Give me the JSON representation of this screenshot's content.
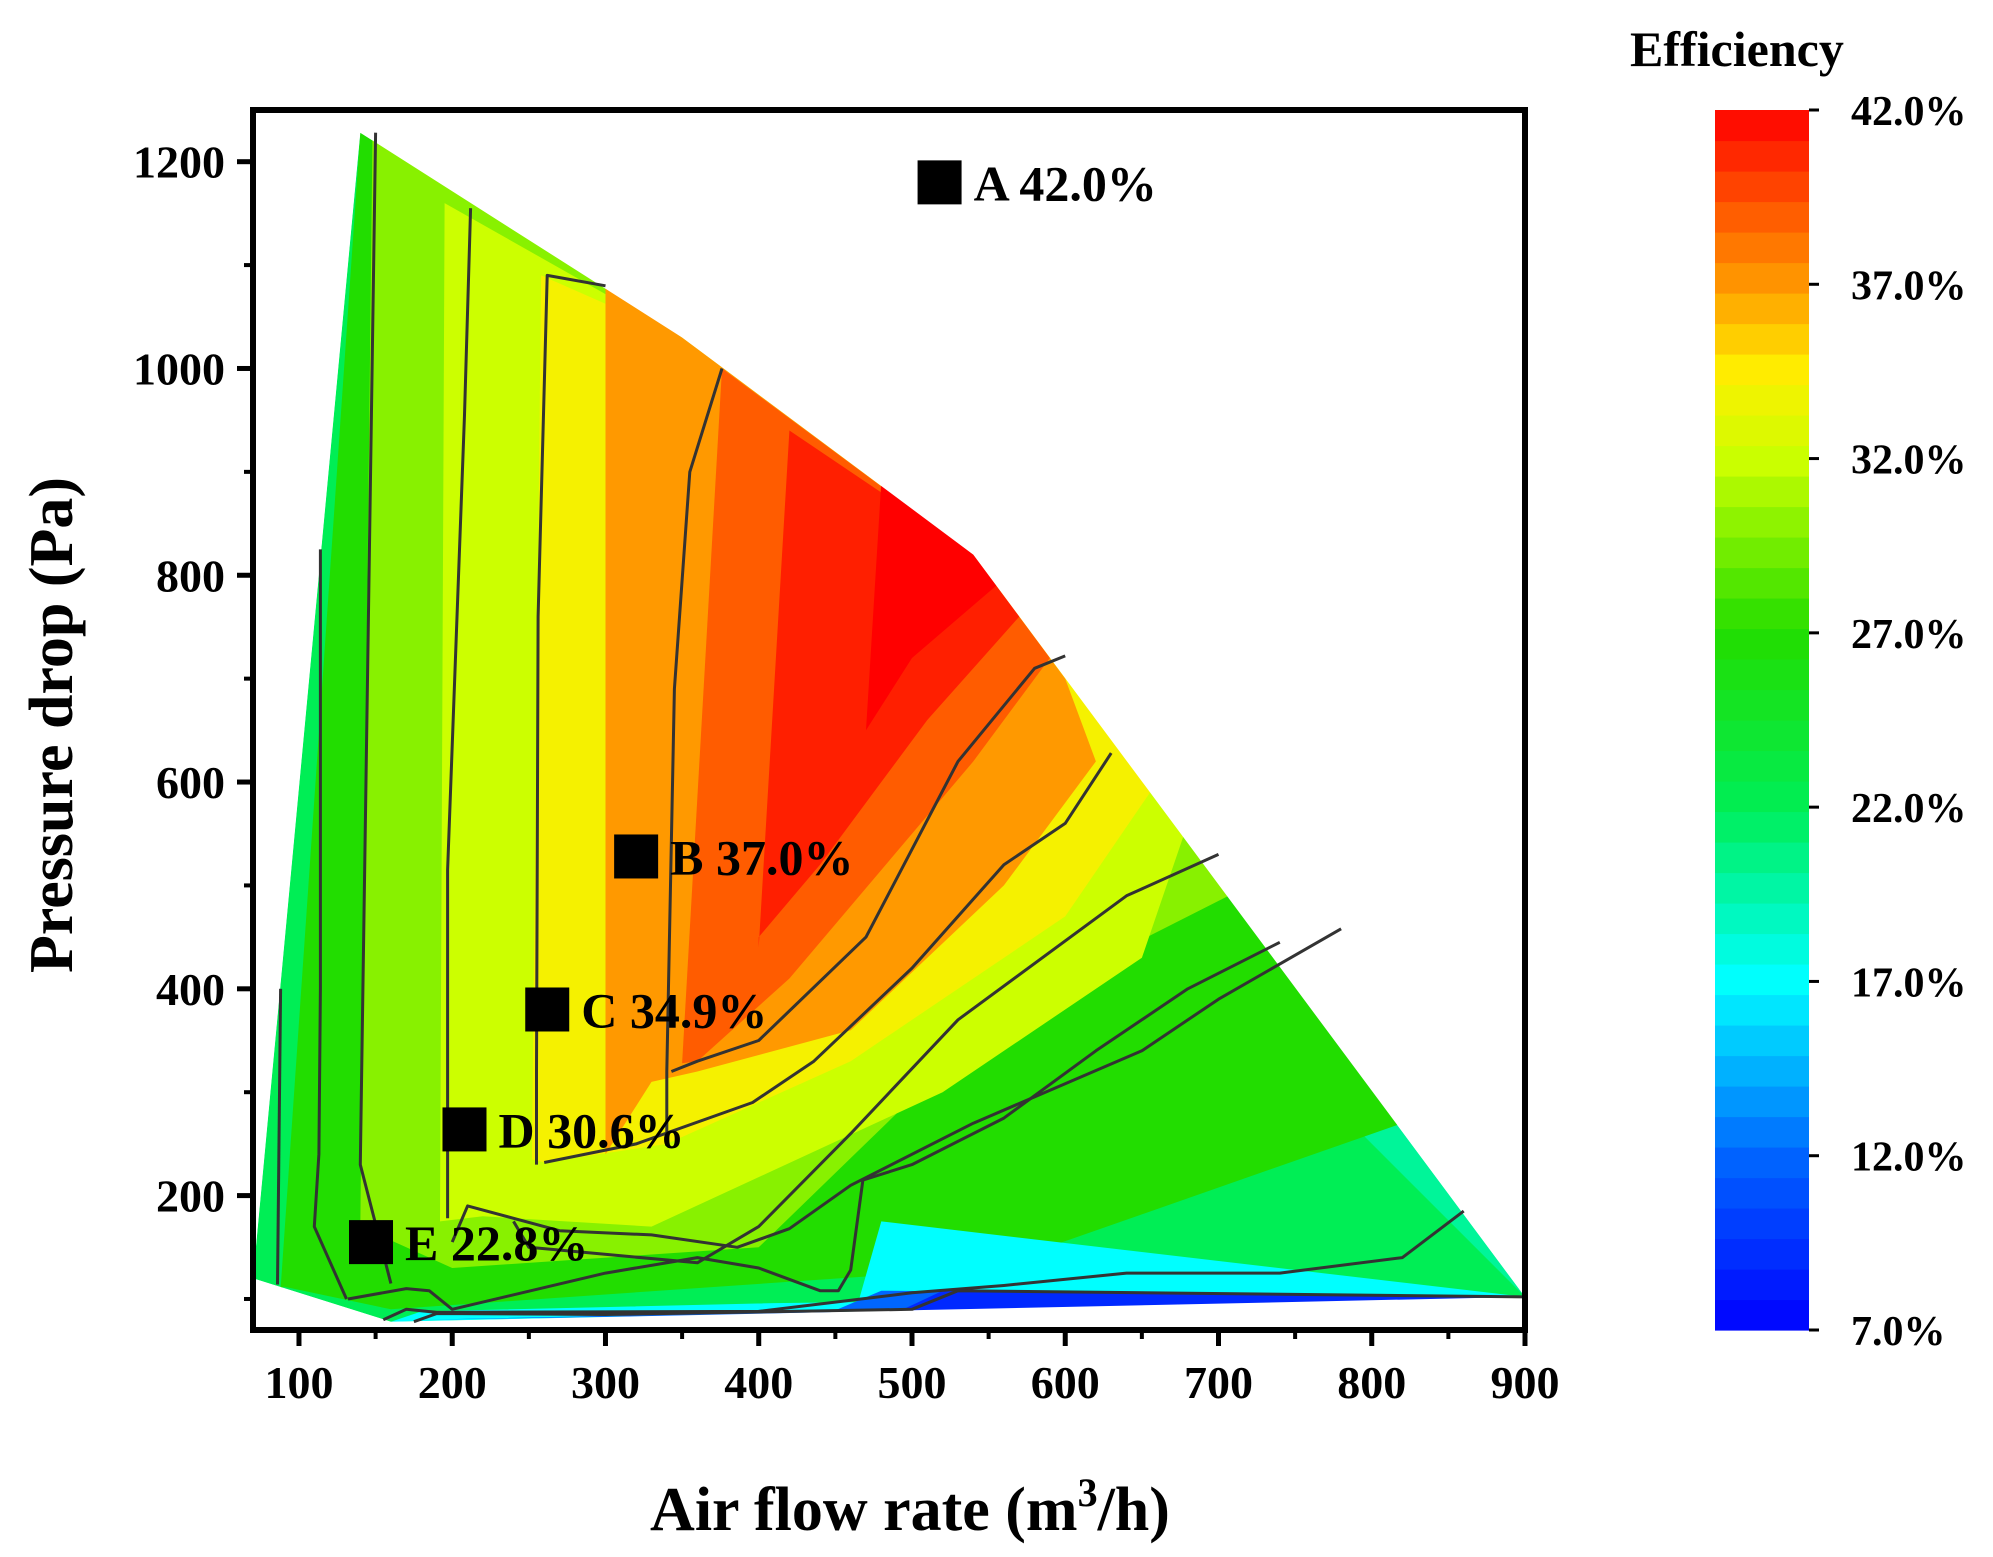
{
  "chart_data": {
    "type": "contour",
    "xlabel_main": "Air flow rate (m",
    "xlabel_sup": "3",
    "xlabel_end": "/h)",
    "ylabel": "Pressure drop (Pa)",
    "colorbar_title": "Efficiency",
    "xlim": [
      70,
      900
    ],
    "ylim": [
      70,
      1250
    ],
    "x_ticks": [
      100,
      200,
      300,
      400,
      500,
      600,
      700,
      800,
      900
    ],
    "x_tick_labels": [
      "100",
      "200",
      "300",
      "400",
      "500",
      "600",
      "700",
      "800",
      "900"
    ],
    "y_ticks": [
      200,
      400,
      600,
      800,
      1000,
      1200
    ],
    "y_tick_labels": [
      "200",
      "400",
      "600",
      "800",
      "1000",
      "1200"
    ],
    "colorbar_range": [
      7.0,
      42.0
    ],
    "colorbar_ticks": [
      42.0,
      37.0,
      32.0,
      27.0,
      22.0,
      17.0,
      12.0,
      7.0
    ],
    "colorbar_tick_labels": [
      "42.0%",
      "37.0%",
      "32.0%",
      "27.0%",
      "22.0%",
      "17.0%",
      "12.0%",
      "7.0%"
    ],
    "colors": {
      "stops": [
        {
          "v": 7.0,
          "c": "#0000ff"
        },
        {
          "v": 12.0,
          "c": "#0066ff"
        },
        {
          "v": 17.0,
          "c": "#00ffff"
        },
        {
          "v": 22.0,
          "c": "#00ee55"
        },
        {
          "v": 27.0,
          "c": "#22dd00"
        },
        {
          "v": 32.0,
          "c": "#ccff00"
        },
        {
          "v": 34.5,
          "c": "#ffee00"
        },
        {
          "v": 37.0,
          "c": "#ff9900"
        },
        {
          "v": 42.0,
          "c": "#ff0000"
        }
      ]
    },
    "domain_boundary": [
      [
        70,
        120
      ],
      [
        140,
        1228
      ],
      [
        350,
        1030
      ],
      [
        540,
        820
      ],
      [
        900,
        102
      ],
      [
        160,
        78
      ],
      [
        70,
        120
      ]
    ],
    "bands": [
      {
        "level": 22.0,
        "polygon": [
          [
            70,
            120
          ],
          [
            140,
            1228
          ],
          [
            900,
            102
          ],
          [
            160,
            78
          ],
          [
            70,
            120
          ]
        ]
      },
      {
        "level": 27.0,
        "polygon": [
          [
            88,
            110
          ],
          [
            140,
            1228
          ],
          [
            350,
            1030
          ],
          [
            540,
            820
          ],
          [
            695,
            530
          ],
          [
            745,
            445
          ],
          [
            780,
            355
          ],
          [
            820,
            270
          ],
          [
            550,
            130
          ],
          [
            160,
            90
          ],
          [
            90,
            112
          ]
        ]
      },
      {
        "level": 30.0,
        "polygon": [
          [
            140,
            170
          ],
          [
            148,
            1228
          ],
          [
            350,
            1030
          ],
          [
            540,
            820
          ],
          [
            630,
            628
          ],
          [
            700,
            530
          ],
          [
            720,
            500
          ],
          [
            560,
            380
          ],
          [
            400,
            150
          ],
          [
            200,
            130
          ],
          [
            140,
            170
          ]
        ]
      },
      {
        "level": 32.0,
        "polygon": [
          [
            192,
            175
          ],
          [
            195,
            1160
          ],
          [
            350,
            1030
          ],
          [
            540,
            820
          ],
          [
            630,
            628
          ],
          [
            680,
            560
          ],
          [
            650,
            430
          ],
          [
            520,
            300
          ],
          [
            330,
            170
          ],
          [
            220,
            180
          ]
        ]
      },
      {
        "level": 34.0,
        "polygon": [
          [
            252,
            235
          ],
          [
            258,
            1090
          ],
          [
            350,
            1030
          ],
          [
            540,
            820
          ],
          [
            660,
            600
          ],
          [
            600,
            470
          ],
          [
            460,
            330
          ],
          [
            340,
            250
          ],
          [
            260,
            232
          ]
        ]
      },
      {
        "level": 37.0,
        "polygon": [
          [
            300,
            240
          ],
          [
            300,
            1080
          ],
          [
            350,
            1030
          ],
          [
            540,
            820
          ],
          [
            600,
            700
          ],
          [
            620,
            620
          ],
          [
            560,
            500
          ],
          [
            460,
            360
          ],
          [
            360,
            320
          ],
          [
            330,
            310
          ]
        ]
      },
      {
        "level": 39.0,
        "polygon": [
          [
            350,
            328
          ],
          [
            376,
            1000
          ],
          [
            540,
            820
          ],
          [
            590,
            720
          ],
          [
            540,
            620
          ],
          [
            420,
            410
          ],
          [
            360,
            330
          ]
        ]
      },
      {
        "level": 41.0,
        "polygon": [
          [
            400,
            440
          ],
          [
            420,
            940
          ],
          [
            540,
            820
          ],
          [
            570,
            760
          ],
          [
            510,
            660
          ],
          [
            440,
            520
          ],
          [
            400,
            450
          ]
        ]
      },
      {
        "level": 42.0,
        "polygon": [
          [
            470,
            650
          ],
          [
            480,
            890
          ],
          [
            540,
            820
          ],
          [
            555,
            790
          ],
          [
            500,
            720
          ]
        ]
      }
    ],
    "low_bands": [
      {
        "level": 17.0,
        "polygon": [
          [
            160,
            78
          ],
          [
            180,
            88
          ],
          [
            410,
            96
          ],
          [
            465,
            97
          ],
          [
            480,
            175
          ],
          [
            900,
            102
          ]
        ]
      },
      {
        "level": 12.0,
        "polygon": [
          [
            180,
            80
          ],
          [
            445,
            86
          ],
          [
            480,
            108
          ],
          [
            900,
            102
          ]
        ]
      },
      {
        "level": 9.0,
        "polygon": [
          [
            480,
            80
          ],
          [
            520,
            108
          ],
          [
            900,
            102
          ],
          [
            860,
            90
          ]
        ]
      }
    ],
    "contour_lines": [
      [
        [
          86,
          114
        ],
        [
          88,
          400
        ]
      ],
      [
        [
          131,
          100
        ],
        [
          110,
          170
        ],
        [
          113,
          240
        ],
        [
          114,
          400
        ],
        [
          114,
          825
        ]
      ],
      [
        [
          132,
          100
        ],
        [
          170,
          110
        ],
        [
          185,
          108
        ],
        [
          200,
          90
        ],
        [
          300,
          125
        ],
        [
          360,
          140
        ],
        [
          400,
          130
        ],
        [
          440,
          108
        ],
        [
          452,
          108
        ],
        [
          460,
          128
        ],
        [
          468,
          215
        ],
        [
          500,
          230
        ],
        [
          560,
          275
        ],
        [
          620,
          340
        ],
        [
          680,
          400
        ],
        [
          740,
          445
        ]
      ],
      [
        [
          160,
          115
        ],
        [
          140,
          230
        ],
        [
          150,
          1228
        ]
      ],
      [
        [
          200,
          155
        ],
        [
          210,
          190
        ],
        [
          270,
          166
        ],
        [
          330,
          162
        ],
        [
          386,
          150
        ],
        [
          420,
          168
        ],
        [
          460,
          210
        ],
        [
          540,
          270
        ],
        [
          650,
          340
        ],
        [
          700,
          390
        ],
        [
          780,
          458
        ]
      ],
      [
        [
          197,
          178
        ],
        [
          197,
          515
        ],
        [
          208,
          955
        ],
        [
          212,
          1155
        ]
      ],
      [
        [
          240,
          175
        ],
        [
          250,
          150
        ],
        [
          360,
          135
        ],
        [
          400,
          170
        ],
        [
          460,
          260
        ],
        [
          530,
          370
        ],
        [
          640,
          490
        ],
        [
          700,
          530
        ]
      ],
      [
        [
          255,
          230
        ],
        [
          255,
          320
        ],
        [
          256,
          760
        ],
        [
          262,
          1090
        ],
        [
          300,
          1080
        ]
      ],
      [
        [
          260,
          232
        ],
        [
          320,
          250
        ],
        [
          396,
          290
        ],
        [
          436,
          330
        ],
        [
          500,
          420
        ],
        [
          560,
          520
        ],
        [
          600,
          560
        ],
        [
          630,
          628
        ]
      ],
      [
        [
          340,
          248
        ],
        [
          340,
          320
        ],
        [
          345,
          690
        ],
        [
          355,
          900
        ],
        [
          376,
          1000
        ]
      ],
      [
        [
          343,
          320
        ],
        [
          360,
          330
        ],
        [
          400,
          350
        ],
        [
          470,
          450
        ],
        [
          530,
          620
        ],
        [
          580,
          710
        ],
        [
          600,
          722
        ]
      ],
      [
        [
          155,
          80
        ],
        [
          170,
          90
        ],
        [
          190,
          87
        ],
        [
          400,
          88
        ],
        [
          500,
          106
        ],
        [
          560,
          113
        ],
        [
          640,
          125
        ],
        [
          740,
          125
        ],
        [
          820,
          140
        ],
        [
          860,
          185
        ]
      ],
      [
        [
          175,
          78
        ],
        [
          190,
          86
        ],
        [
          300,
          85
        ],
        [
          500,
          90
        ],
        [
          530,
          108
        ],
        [
          900,
          102
        ]
      ]
    ],
    "points": [
      {
        "label": "A 42.0%",
        "x": 518,
        "y": 1180
      },
      {
        "label": "B 37.0%",
        "x": 320,
        "y": 528
      },
      {
        "label": "C 34.9%",
        "x": 262,
        "y": 380
      },
      {
        "label": "D 30.6%",
        "x": 208,
        "y": 264
      },
      {
        "label": "E 22.8%",
        "x": 147,
        "y": 155
      }
    ]
  }
}
